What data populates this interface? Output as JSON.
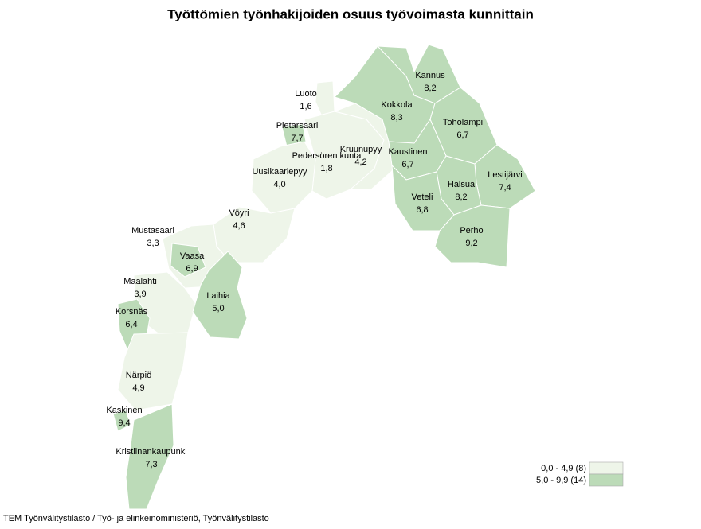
{
  "title": "Työttömien työnhakijoiden osuus työvoimasta kunnittain",
  "regions": [
    {
      "name": "Luoto",
      "value": 1.6,
      "value_label": "1,6"
    },
    {
      "name": "Pietarsaari",
      "value": 7.7,
      "value_label": "7,7"
    },
    {
      "name": "Pedersören kunta",
      "value": 1.8,
      "value_label": "1,8"
    },
    {
      "name": "Kruunupyy",
      "value": 4.2,
      "value_label": "4,2"
    },
    {
      "name": "Uusikaarlepyy",
      "value": 4.0,
      "value_label": "4,0"
    },
    {
      "name": "Vöyri",
      "value": 4.6,
      "value_label": "4,6"
    },
    {
      "name": "Mustasaari",
      "value": 3.3,
      "value_label": "3,3"
    },
    {
      "name": "Vaasa",
      "value": 6.9,
      "value_label": "6,9"
    },
    {
      "name": "Maalahti",
      "value": 3.9,
      "value_label": "3,9"
    },
    {
      "name": "Laihia",
      "value": 5.0,
      "value_label": "5,0"
    },
    {
      "name": "Korsnäs",
      "value": 6.4,
      "value_label": "6,4"
    },
    {
      "name": "Närpiö",
      "value": 4.9,
      "value_label": "4,9"
    },
    {
      "name": "Kaskinen",
      "value": 9.4,
      "value_label": "9,4"
    },
    {
      "name": "Kristiinankaupunki",
      "value": 7.3,
      "value_label": "7,3"
    },
    {
      "name": "Kannus",
      "value": 8.2,
      "value_label": "8,2"
    },
    {
      "name": "Kokkola",
      "value": 8.3,
      "value_label": "8,3"
    },
    {
      "name": "Toholampi",
      "value": 6.7,
      "value_label": "6,7"
    },
    {
      "name": "Kaustinen",
      "value": 6.7,
      "value_label": "6,7"
    },
    {
      "name": "Lestijärvi",
      "value": 7.4,
      "value_label": "7,4"
    },
    {
      "name": "Halsua",
      "value": 8.2,
      "value_label": "8,2"
    },
    {
      "name": "Veteli",
      "value": 6.8,
      "value_label": "6,8"
    },
    {
      "name": "Perho",
      "value": 9.2,
      "value_label": "9,2"
    }
  ],
  "legend": [
    {
      "label": "0,0 - 4,9 (8)",
      "min": 0.0,
      "max": 4.9,
      "color": "#eef5e9"
    },
    {
      "label": "5,0 - 9,9 (14)",
      "min": 5.0,
      "max": 9.9,
      "color": "#bcdbb8"
    }
  ],
  "source": "TEM Työnvälitystilasto / Työ- ja elinkeinoministeriö, Työnvälitystilasto"
}
